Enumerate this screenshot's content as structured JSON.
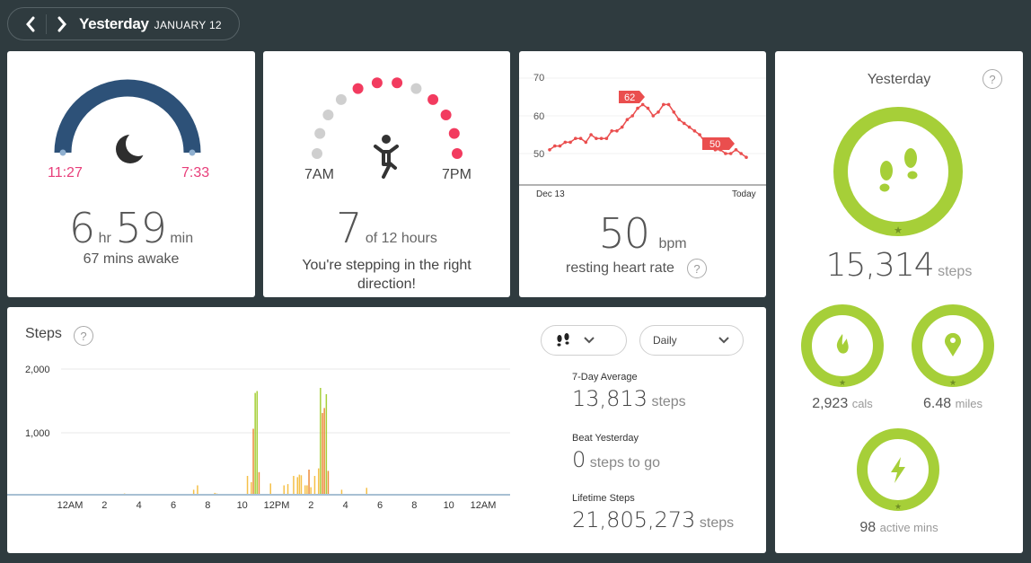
{
  "header": {
    "title": "Yesterday",
    "date": "JANUARY 12"
  },
  "sleep": {
    "start": "11:27",
    "end": "7:33",
    "hours": "6",
    "hr_unit": "hr",
    "minutes": "59",
    "min_unit": "min",
    "awake": "67 mins awake"
  },
  "hourly": {
    "start_label": "7AM",
    "end_label": "7PM",
    "value": "7",
    "of_label": "of 12 hours",
    "message": "You're stepping in the right direction!",
    "dots_active": [
      false,
      false,
      false,
      false,
      true,
      true,
      true,
      false,
      true,
      true,
      true,
      true
    ]
  },
  "heart": {
    "y_ticks": [
      "70",
      "60",
      "50"
    ],
    "x_start": "Dec 13",
    "x_end": "Today",
    "peak_label": "62",
    "current_label": "50",
    "value": "50",
    "unit": "bpm",
    "caption": "resting heart rate",
    "series": [
      51,
      52,
      52,
      53,
      53,
      54,
      54,
      53,
      55,
      54,
      54,
      54,
      56,
      56,
      57,
      59,
      60,
      62,
      63,
      62,
      60,
      61,
      63,
      63,
      61,
      59,
      58,
      57,
      56,
      55,
      53,
      52,
      51,
      51,
      50,
      50,
      51,
      50,
      49
    ]
  },
  "steps_chart": {
    "title": "Steps",
    "type_selector": "footsteps-icon",
    "period_selector": "Daily",
    "y_ticks": [
      "2,000",
      "1,000"
    ],
    "x_ticks": [
      "12AM",
      "2",
      "4",
      "6",
      "8",
      "10",
      "12PM",
      "2",
      "4",
      "6",
      "8",
      "10",
      "12AM"
    ],
    "chart_data": {
      "type": "bar",
      "ylim": [
        0,
        2000
      ],
      "interval_minutes": 15,
      "values": [
        0,
        0,
        0,
        0,
        0,
        0,
        0,
        0,
        0,
        0,
        0,
        0,
        0,
        0,
        0,
        0,
        0,
        0,
        0,
        0,
        0,
        0,
        0,
        0,
        0,
        0,
        0,
        0,
        20,
        0,
        0,
        0,
        0,
        0,
        0,
        0,
        0,
        0,
        0,
        0,
        0,
        0,
        0,
        0,
        0,
        0,
        0,
        0,
        0,
        0,
        0,
        0,
        0,
        0,
        0,
        0,
        0,
        0,
        0,
        0,
        0,
        0,
        0,
        0,
        80,
        0,
        150,
        0,
        0,
        0,
        0,
        0,
        0,
        0,
        0,
        30,
        20,
        10,
        0,
        0,
        0,
        0,
        0,
        0,
        0,
        0,
        0,
        0,
        0,
        0,
        0,
        0,
        300,
        0,
        200,
        1050,
        1620,
        1650,
        360,
        0,
        0,
        0,
        0,
        0,
        180,
        0,
        0,
        0,
        0,
        0,
        0,
        150,
        0,
        170,
        0,
        0,
        300,
        0,
        280,
        320,
        310,
        0,
        150,
        150,
        400,
        120,
        0,
        300,
        0,
        420,
        1700,
        1300,
        1380,
        1600,
        380,
        0,
        0,
        0,
        0,
        0,
        0,
        80,
        0,
        0,
        0,
        0,
        0,
        0,
        0,
        0,
        0,
        0,
        0,
        0,
        110,
        0,
        0,
        0,
        0,
        0,
        0,
        0,
        0,
        0,
        0,
        0,
        0,
        0,
        0,
        0,
        0,
        0,
        0,
        0,
        0,
        0,
        0,
        0,
        0,
        0,
        0,
        0,
        0,
        0,
        0,
        0,
        0,
        0,
        0,
        0,
        0,
        0,
        0,
        0,
        0,
        0,
        0,
        0,
        0,
        0,
        0,
        0,
        0,
        0,
        0,
        0,
        0,
        0,
        0,
        0,
        0,
        0,
        0,
        0,
        0
      ]
    },
    "stats": [
      {
        "label": "7-Day Average",
        "value": "13,813",
        "unit": "steps"
      },
      {
        "label": "Beat Yesterday",
        "value": "0",
        "unit": "steps to go"
      },
      {
        "label": "Lifetime Steps",
        "value": "21,805,273",
        "unit": "steps"
      }
    ],
    "colors": {
      "low": "#f5c048",
      "mid": "#ed8b3d",
      "high": "#a6cf38",
      "baseline": "#a8c0d3",
      "grid": "#e9e9e9"
    }
  },
  "summary": {
    "title": "Yesterday",
    "steps": {
      "value": "15,314",
      "unit": "steps",
      "icon": "footsteps-icon"
    },
    "cals": {
      "value": "2,923",
      "unit": "cals",
      "icon": "flame-icon"
    },
    "miles": {
      "value": "6.48",
      "unit": "miles",
      "icon": "location-pin-icon"
    },
    "active": {
      "value": "98",
      "unit": "active mins",
      "icon": "lightning-icon"
    },
    "colors": {
      "ring": "#a6cf38",
      "ring_inner": "#ffffff",
      "star": "#6f8f25"
    }
  }
}
